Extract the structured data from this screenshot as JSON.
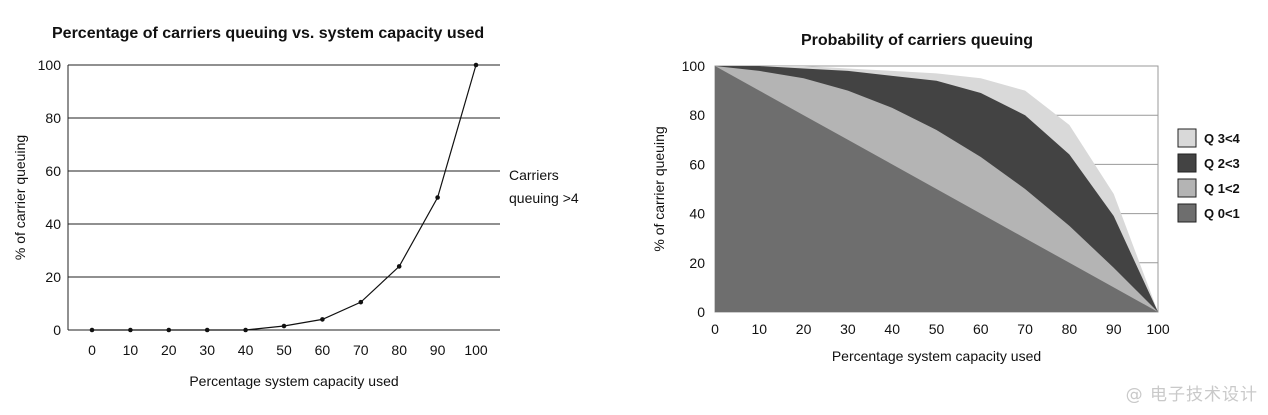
{
  "watermark": "@ 电子技术设计",
  "chart_data": [
    {
      "type": "line",
      "title": "Percentage of carriers queuing vs. system capacity used",
      "xlabel": "Percentage system capacity used",
      "ylabel": "% of carrier queuing",
      "xlim": [
        0,
        100
      ],
      "ylim": [
        0,
        100
      ],
      "x": [
        0,
        10,
        20,
        30,
        40,
        50,
        60,
        70,
        80,
        90,
        100
      ],
      "y_ticks": [
        0,
        20,
        40,
        60,
        80,
        100
      ],
      "grid": "horizontal",
      "series": [
        {
          "name": "Carriers queuing >4",
          "x": [
            0,
            10,
            20,
            30,
            40,
            50,
            60,
            70,
            80,
            90,
            100
          ],
          "values": [
            0,
            0,
            0,
            0,
            0,
            1.5,
            4,
            10.5,
            24,
            50,
            100
          ]
        }
      ],
      "annotation": [
        "Carriers",
        "queuing >4"
      ]
    },
    {
      "type": "area",
      "title": "Probability of carriers queuing",
      "xlabel": "Percentage system capacity used",
      "ylabel": "% of carrier queuing",
      "xlim": [
        0,
        100
      ],
      "ylim": [
        0,
        100
      ],
      "x": [
        0,
        10,
        20,
        30,
        40,
        50,
        60,
        70,
        80,
        90,
        100
      ],
      "y_ticks": [
        0,
        20,
        40,
        60,
        80,
        100
      ],
      "grid": "horizontal",
      "legend_position": "right",
      "series": [
        {
          "name": "Q 3<4",
          "color": "#d9d9d9",
          "values": [
            100,
            100,
            100,
            99,
            98,
            97,
            95,
            90,
            76,
            48,
            0
          ]
        },
        {
          "name": "Q 2<3",
          "color": "#434343",
          "values": [
            100,
            100,
            99,
            98,
            96,
            94,
            89,
            80,
            64,
            39,
            0
          ]
        },
        {
          "name": "Q 1<2",
          "color": "#b4b4b4",
          "values": [
            100,
            98,
            95,
            90,
            83,
            74,
            63,
            50,
            35,
            18,
            0
          ]
        },
        {
          "name": "Q 0<1",
          "color": "#6e6e6e",
          "values": [
            100,
            90,
            80,
            70,
            60,
            50,
            40,
            30,
            20,
            10,
            0
          ]
        }
      ]
    }
  ]
}
